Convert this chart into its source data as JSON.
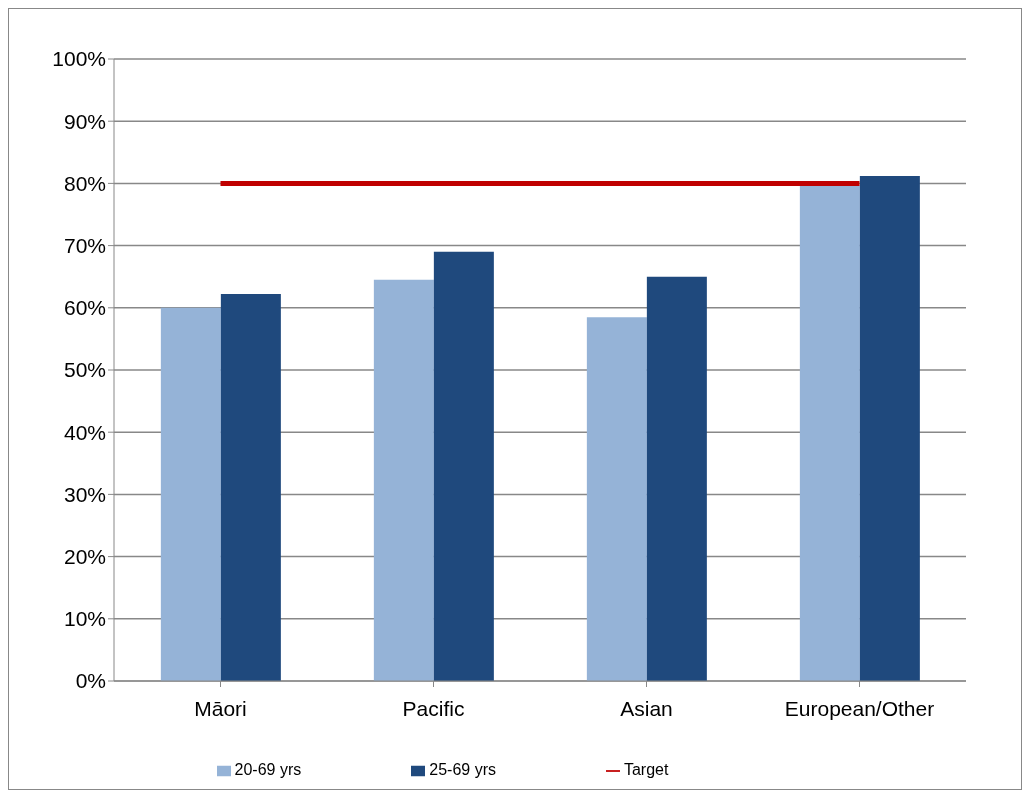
{
  "chart_data": {
    "type": "bar",
    "categories": [
      "Māori",
      "Pacific",
      "Asian",
      "European/Other"
    ],
    "series": [
      {
        "name": "20-69 yrs",
        "color": "#95b3d7",
        "values": [
          60,
          64.5,
          58.5,
          79.7
        ]
      },
      {
        "name": "25-69 yrs",
        "color": "#1f497d",
        "values": [
          62.2,
          69,
          65,
          81.2
        ]
      },
      {
        "name": "Target",
        "type": "line",
        "color": "#c00000",
        "values": [
          80,
          80,
          80,
          80
        ]
      }
    ],
    "ylim": [
      0,
      100
    ],
    "yticks": [
      {
        "value": 0,
        "label": "0%"
      },
      {
        "value": 10,
        "label": "10%"
      },
      {
        "value": 20,
        "label": "20%"
      },
      {
        "value": 30,
        "label": "30%"
      },
      {
        "value": 40,
        "label": "40%"
      },
      {
        "value": 50,
        "label": "50%"
      },
      {
        "value": 60,
        "label": "60%"
      },
      {
        "value": 70,
        "label": "70%"
      },
      {
        "value": 80,
        "label": "80%"
      },
      {
        "value": 90,
        "label": "90%"
      },
      {
        "value": 100,
        "label": "100%"
      }
    ],
    "grid": "y",
    "legend": "bottom",
    "marker": "none",
    "line_style": "solid"
  }
}
